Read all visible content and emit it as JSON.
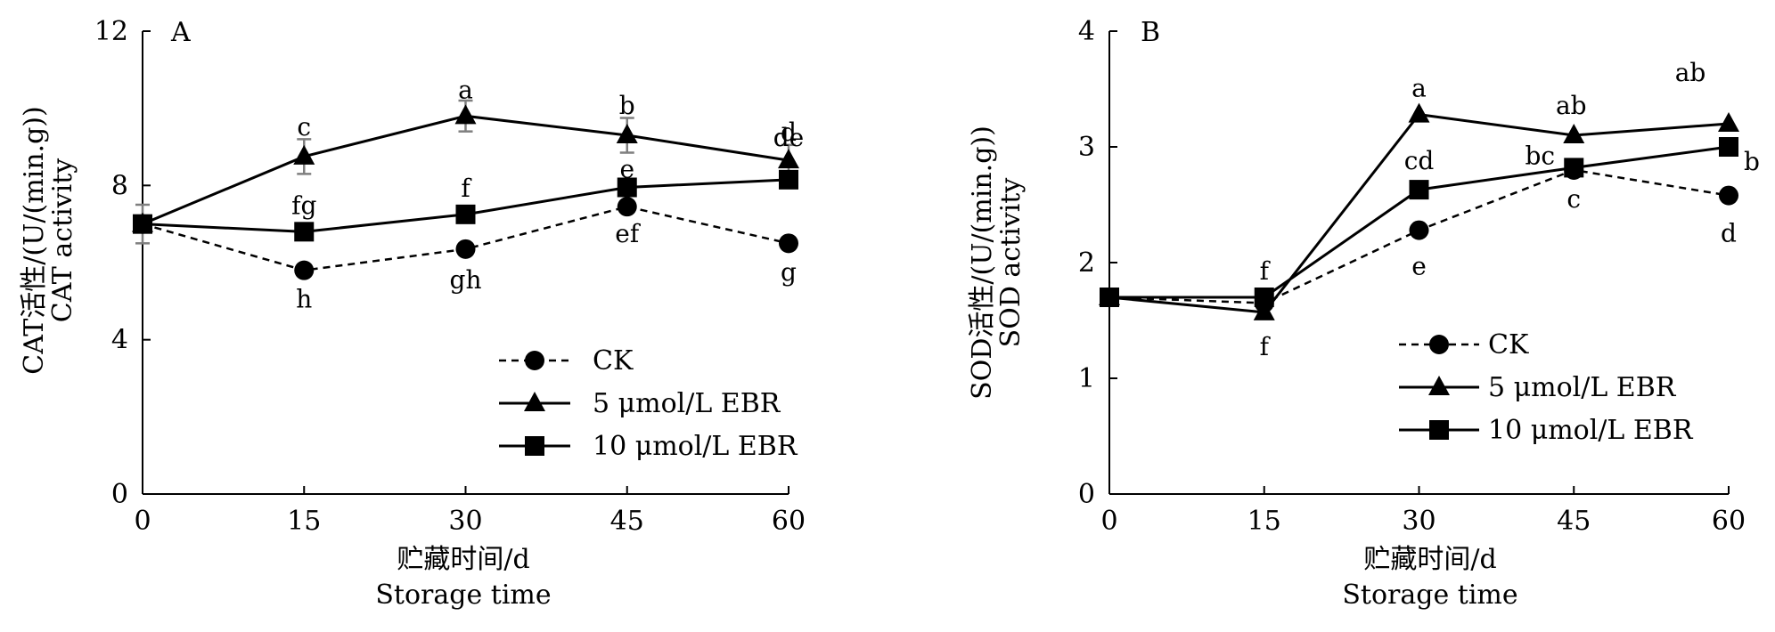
{
  "chart_data": [
    {
      "type": "line",
      "panel": "A",
      "xlabel": [
        "贮藏时间/d",
        "Storage time"
      ],
      "ylabel": [
        "CAT活性/(U/(min.g))",
        "CAT activity"
      ],
      "x": [
        0,
        15,
        30,
        45,
        60
      ],
      "xlim": [
        0,
        60
      ],
      "ylim": [
        0,
        12
      ],
      "xticks": [
        "0",
        "15",
        "30",
        "45",
        "60"
      ],
      "yticks": [
        "0",
        "4",
        "8",
        "12"
      ],
      "grid": false,
      "legend_position": "lower-right",
      "series": [
        {
          "name": "CK",
          "marker": "circle",
          "line": "dashed",
          "values": [
            7.0,
            5.8,
            6.35,
            7.45,
            6.5
          ],
          "error": [
            0,
            0.15,
            0.15,
            0.15,
            0.15
          ],
          "labels": [
            "",
            "h",
            "gh",
            "ef",
            "g"
          ]
        },
        {
          "name": "5  μmol/L EBR",
          "marker": "triangle",
          "line": "solid",
          "values": [
            7.0,
            8.75,
            9.8,
            9.3,
            8.65
          ],
          "error": [
            0,
            0.45,
            0.4,
            0.45,
            0.4
          ],
          "labels": [
            "",
            "c",
            "a",
            "b",
            "d"
          ]
        },
        {
          "name": "10  μmol/L EBR",
          "marker": "square",
          "line": "solid",
          "values": [
            7.0,
            6.8,
            7.25,
            7.95,
            8.15
          ],
          "error": [
            0.5,
            0.15,
            0.15,
            0.15,
            0.15
          ],
          "labels": [
            "",
            "fg",
            "f",
            "e",
            "de"
          ]
        }
      ]
    },
    {
      "type": "line",
      "panel": "B",
      "xlabel": [
        "贮藏时间/d",
        "Storage time"
      ],
      "ylabel": [
        "SOD活性/(U/(min.g))",
        "SOD activity"
      ],
      "x": [
        0,
        15,
        30,
        45,
        60
      ],
      "xlim": [
        0,
        60
      ],
      "ylim": [
        0,
        4
      ],
      "xticks": [
        "0",
        "15",
        "30",
        "45",
        "60"
      ],
      "yticks": [
        "0",
        "1",
        "2",
        "3",
        "4"
      ],
      "grid": false,
      "legend_position": "lower-right",
      "series": [
        {
          "name": "CK",
          "marker": "circle",
          "line": "dashed",
          "values": [
            1.7,
            1.65,
            2.28,
            2.8,
            2.58
          ],
          "labels": [
            "",
            "",
            "e",
            "c",
            "d"
          ]
        },
        {
          "name": "5  μmol/L EBR",
          "marker": "triangle",
          "line": "solid",
          "values": [
            1.7,
            1.57,
            3.28,
            3.1,
            3.2
          ],
          "labels": [
            "",
            "f",
            "a",
            "ab",
            "ab"
          ]
        },
        {
          "name": "10  μmol/L EBR",
          "marker": "square",
          "line": "solid",
          "values": [
            1.7,
            1.7,
            2.63,
            2.82,
            3.0
          ],
          "labels": [
            "",
            "f",
            "cd",
            "bc",
            "b"
          ]
        }
      ]
    }
  ],
  "panel_letters": [
    "A",
    "B"
  ],
  "colors": {
    "ink": "#000000",
    "errorbar": "#7f7f7f",
    "background": "#ffffff"
  }
}
